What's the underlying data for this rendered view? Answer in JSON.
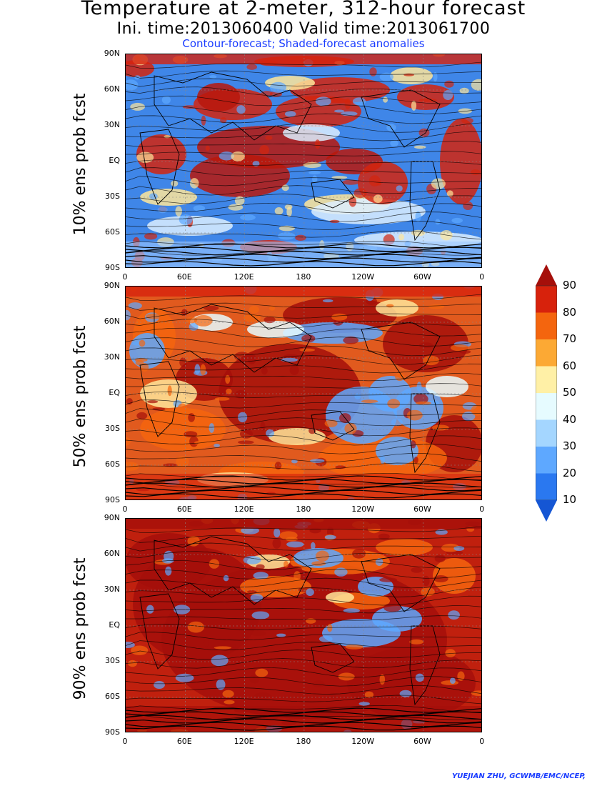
{
  "header": {
    "title": "Temperature at 2-meter, 312-hour forecast",
    "subtitle": "Ini. time:2013060400    Valid time:2013061700",
    "note": "Contour-forecast; Shaded-forecast anomalies"
  },
  "panels": [
    {
      "label": "10% ens prob fcst"
    },
    {
      "label": "50% ens prob fcst"
    },
    {
      "label": "90% ens prob fcst"
    }
  ],
  "y_ticks": [
    "90N",
    "60N",
    "30N",
    "EQ",
    "30S",
    "60S",
    "90S"
  ],
  "x_ticks": [
    "0",
    "60E",
    "120E",
    "180",
    "120W",
    "60W",
    "0"
  ],
  "colorbar": {
    "levels": [
      "90",
      "80",
      "70",
      "60",
      "50",
      "40",
      "30",
      "20",
      "10"
    ],
    "colors": [
      "#a50f0a",
      "#d7220c",
      "#f4650e",
      "#fca934",
      "#fff0a6",
      "#e6fbff",
      "#a4d6ff",
      "#5ea8ff",
      "#2a78f0",
      "#1556d4"
    ]
  },
  "credit": "YUEJIAN ZHU, GCWMB/EMC/NCEP,"
}
